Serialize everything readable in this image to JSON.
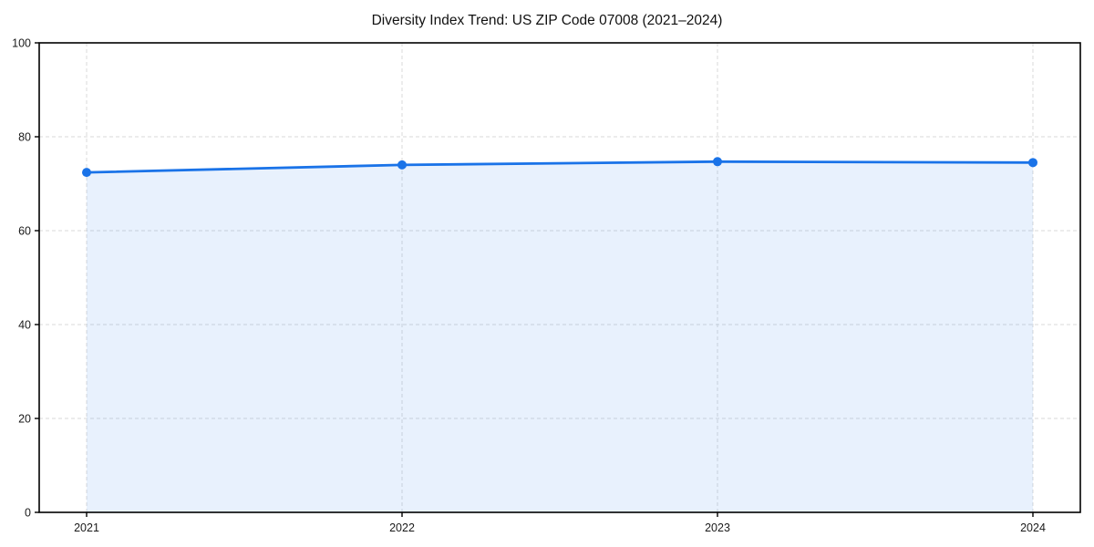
{
  "chart_data": {
    "type": "area",
    "title": "Diversity Index Trend: US ZIP Code 07008 (2021–2024)",
    "x": [
      2021,
      2022,
      2023,
      2024
    ],
    "series": [
      {
        "name": "Diversity Index",
        "values": [
          72.4,
          74.0,
          74.7,
          74.5
        ]
      }
    ],
    "xlabel": "",
    "ylabel": "",
    "ylim": [
      0,
      100
    ],
    "yticks": [
      0,
      20,
      40,
      60,
      80,
      100
    ],
    "grid": {
      "style": "dashed",
      "axes": "both",
      "color": "#dadada"
    },
    "legend_position": "none",
    "colors": {
      "line": "#1a73e8",
      "marker": "#1a73e8",
      "fill": "rgba(26,115,232,0.10)",
      "spine": "#000000",
      "tick_label": "#1a1a1a",
      "background": "#ffffff"
    },
    "marker": "circle"
  }
}
